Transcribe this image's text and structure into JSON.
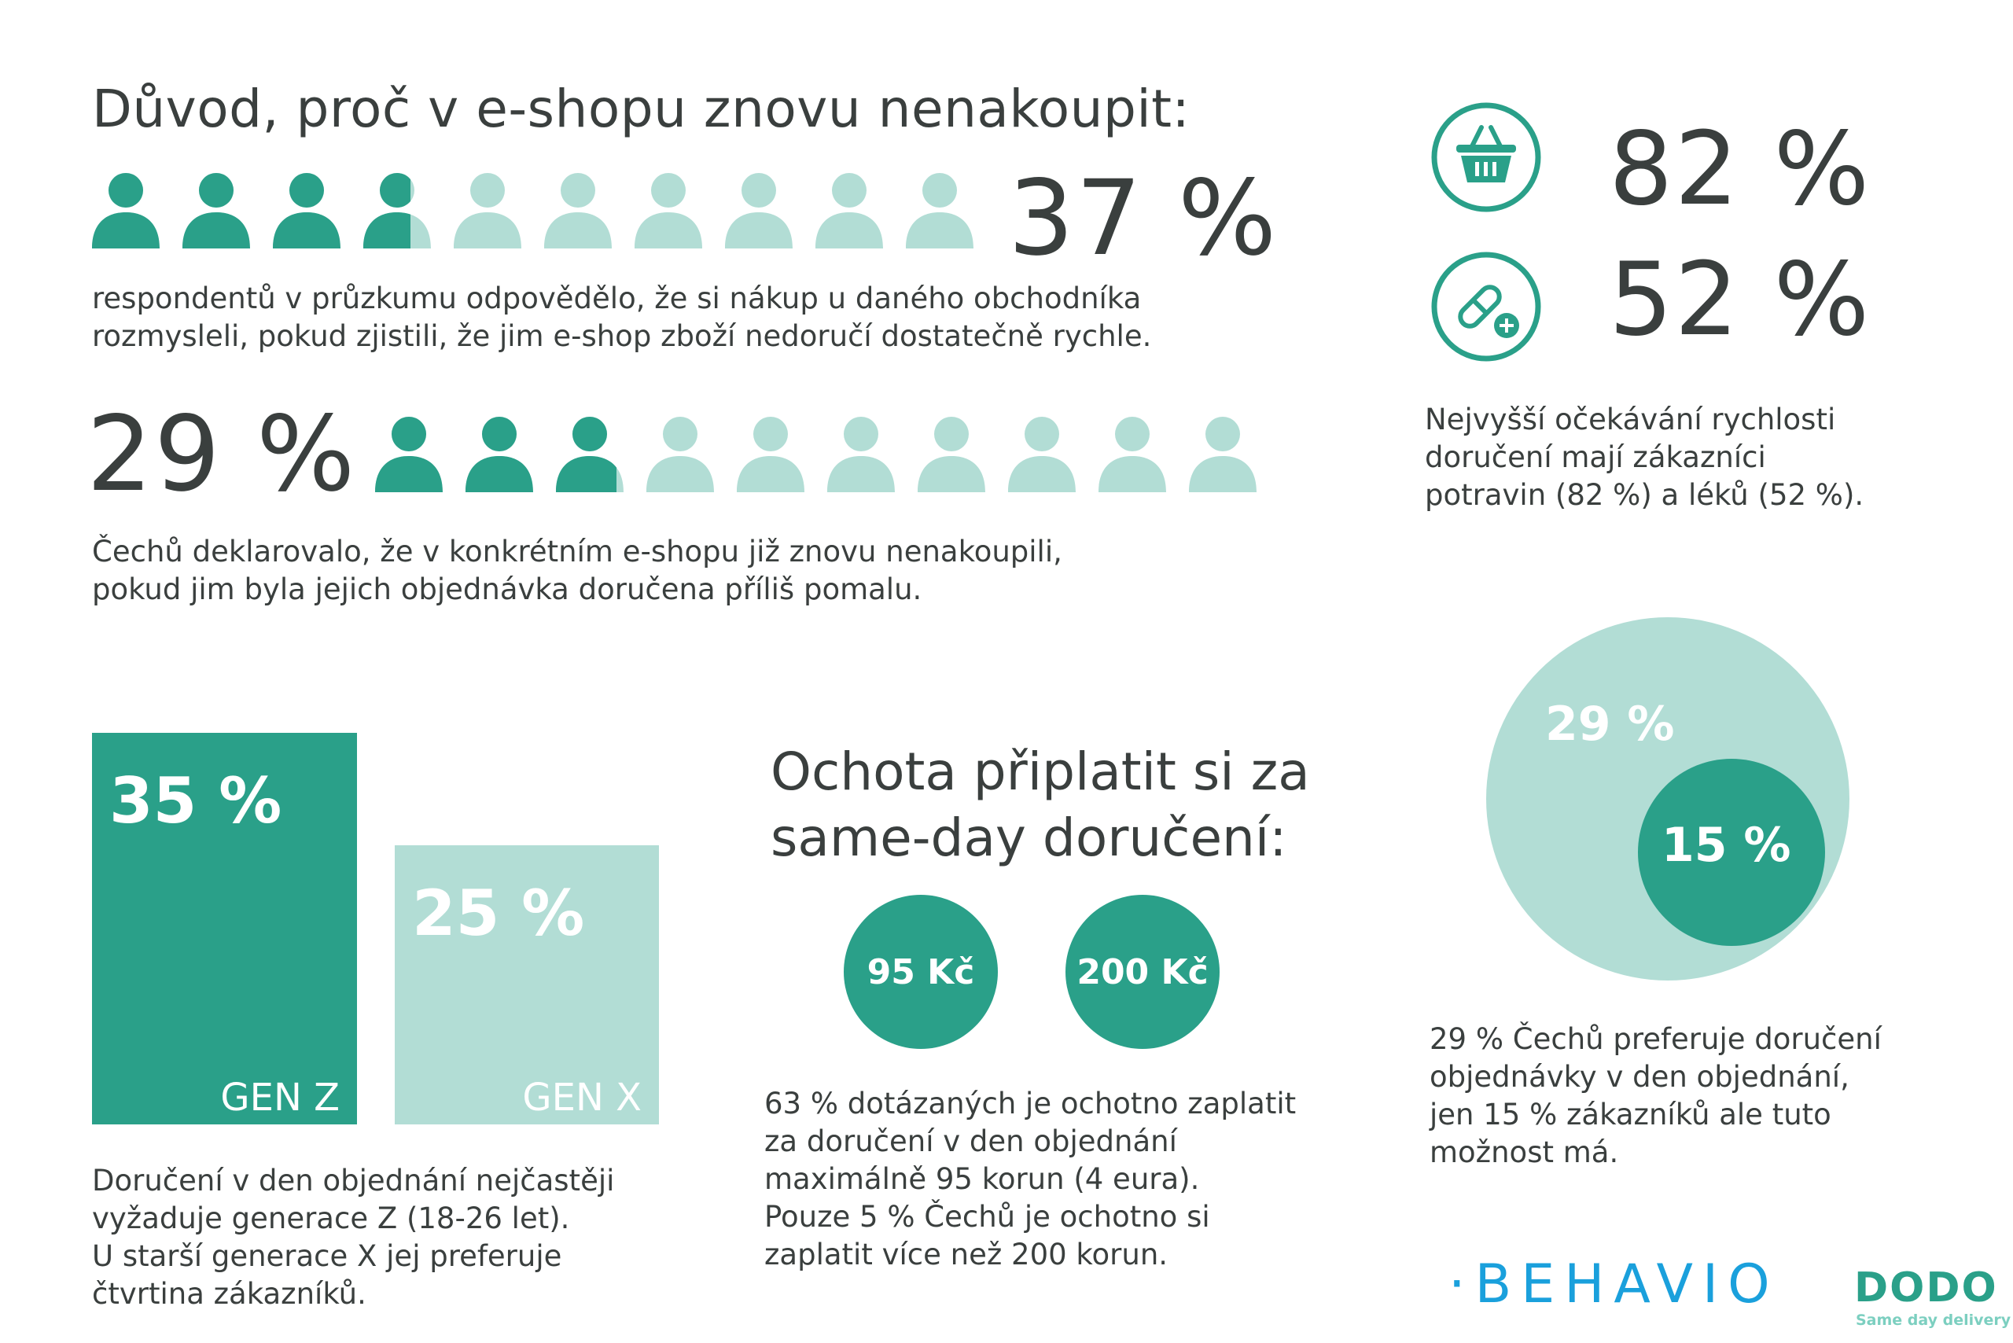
{
  "title": "Důvod, proč v e-shopu znovu nenakoupit:",
  "stat1": {
    "value": "37 %",
    "filled": 3.7,
    "total": 10,
    "text": [
      "respondentů v průzkumu odpovědělo, že si nákup u daného obchodníka",
      "rozmysleli, pokud zjistili, že jim e-shop zboží nedoručí dostatečně rychle."
    ]
  },
  "stat2": {
    "value": "29 %",
    "filled": 2.9,
    "total": 10,
    "text": [
      "Čechů  deklarovalo, že v konkrétním e-shopu již znovu nenakoupili,",
      "pokud jim byla jejich objednávka doručena příliš pomalu."
    ]
  },
  "expectations": {
    "groceries_value": "82 %",
    "groceries_icon": "shopping-basket-icon",
    "medicine_value": "52 %",
    "medicine_icon": "pill-plus-icon",
    "text": [
      "Nejvyšší očekávání rychlosti",
      "doručení mají zákazníci",
      "potravin (82 %) a léků (52 %)."
    ]
  },
  "generations": {
    "gen_z": {
      "value": "35 %",
      "label": "GEN Z",
      "pct": 35
    },
    "gen_x": {
      "value": "25 %",
      "label": "GEN X",
      "pct": 25
    },
    "text": [
      "Doručení v den objednání nejčastěji",
      "vyžaduje generace Z (18-26 let).",
      "U starší generace X jej preferuje",
      "čtvrtina zákazníků."
    ]
  },
  "willingness": {
    "heading": [
      "Ochota připlatit si za",
      "same-day doručení:"
    ],
    "price1": "95 Kč",
    "price2": "200 Kč",
    "text": [
      "63 % dotázaných je ochotno zaplatit",
      "za doručení v den objednání",
      "maximálně 95 korun (4 eura).",
      "Pouze 5 % Čechů je ochotno si",
      "zaplatit více než 200 korun."
    ]
  },
  "sameday": {
    "prefer_value": "29 %",
    "have_value": "15 %",
    "text": [
      "29 % Čechů preferuje doručení",
      "objednávky v den objednání,",
      "jen 15 % zákazníků ale tuto",
      "možnost má."
    ]
  },
  "logos": {
    "behavio": "·BEHAVIO",
    "dodo": "DODO",
    "dodo_tagline": "Same day delivery"
  },
  "colors": {
    "dark_teal": "#2aa089",
    "light_teal": "#b2ddd5",
    "text": "#3a3f3e",
    "behavio_blue": "#1aa0dc"
  }
}
